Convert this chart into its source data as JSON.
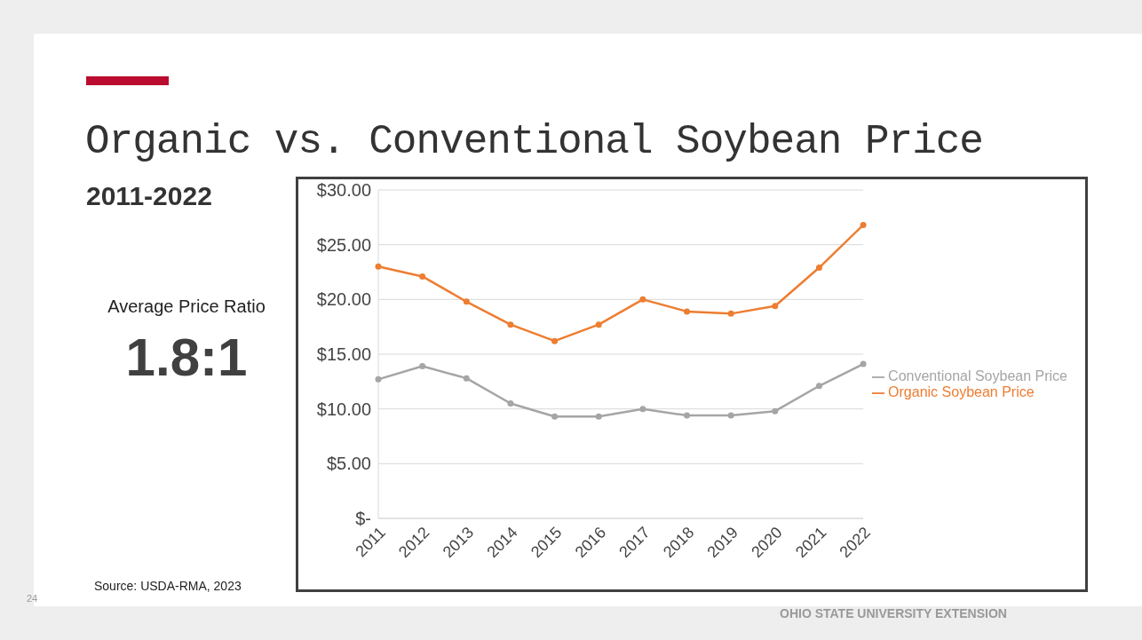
{
  "chart_data": {
    "type": "line",
    "title": "Organic vs. Conventional Soybean Price",
    "subtitle": "2011-2022",
    "annotations": [
      "Average Price Ratio",
      "1.8:1",
      "Source: USDA-RMA, 2023",
      "24",
      "OHIO STATE UNIVERSITY EXTENSION"
    ],
    "categories": [
      "2011",
      "2012",
      "2013",
      "2014",
      "2015",
      "2016",
      "2017",
      "2018",
      "2019",
      "2020",
      "2021",
      "2022"
    ],
    "series": [
      {
        "name": "Organic Soybean Price",
        "color": "#ed7d31",
        "values": [
          23.0,
          22.1,
          19.8,
          17.7,
          16.2,
          17.7,
          20.0,
          18.9,
          18.7,
          19.4,
          22.9,
          26.8
        ]
      },
      {
        "name": "Conventional Soybean Price",
        "color": "#a5a5a5",
        "values": [
          12.7,
          13.9,
          12.8,
          10.5,
          9.3,
          9.3,
          10.0,
          9.4,
          9.4,
          9.8,
          12.1,
          14.1
        ]
      }
    ],
    "ylim": [
      0,
      30
    ],
    "yticks": [
      {
        "value": 0,
        "label": "$-"
      },
      {
        "value": 5,
        "label": "$5.00"
      },
      {
        "value": 10,
        "label": "$10.00"
      },
      {
        "value": 15,
        "label": "$15.00"
      },
      {
        "value": 20,
        "label": "$20.00"
      },
      {
        "value": 25,
        "label": "$25.00"
      },
      {
        "value": 30,
        "label": "$30.00"
      }
    ],
    "grid": "y",
    "legend": "right",
    "marker": "circle",
    "line_style": "solid"
  }
}
